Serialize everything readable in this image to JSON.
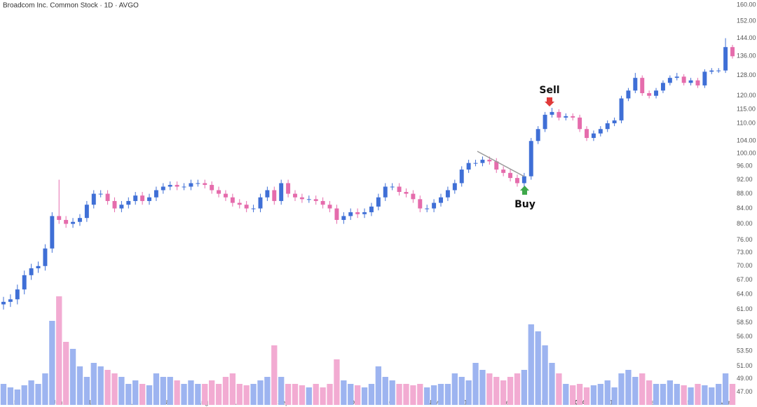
{
  "chart_data": {
    "type": "candlestick",
    "title": "Broadcom Inc. Common Stock · 1D · AVGO",
    "annotations": [
      "Sell",
      "Buy"
    ],
    "log_scale": true,
    "grid": false,
    "up_color": "#3f6fd6",
    "down_color": "#e56cac",
    "volume_up_color": "#9db4f0",
    "volume_down_color": "#f2abd2",
    "ylim": [
      45,
      160
    ],
    "yticks": [
      {
        "value": 160,
        "label": "160.00"
      },
      {
        "value": 152,
        "label": "152.00"
      },
      {
        "value": 144,
        "label": "144.00"
      },
      {
        "value": 136,
        "label": "136.00"
      },
      {
        "value": 128,
        "label": "128.00"
      },
      {
        "value": 120,
        "label": "120.00"
      },
      {
        "value": 115,
        "label": "115.00"
      },
      {
        "value": 110,
        "label": "110.00"
      },
      {
        "value": 104,
        "label": "104.00"
      },
      {
        "value": 100,
        "label": "100.00"
      },
      {
        "value": 96,
        "label": "96.00"
      },
      {
        "value": 92,
        "label": "92.00"
      },
      {
        "value": 88,
        "label": "88.00"
      },
      {
        "value": 84,
        "label": "84.00"
      },
      {
        "value": 80,
        "label": "80.00"
      },
      {
        "value": 76,
        "label": "76.00"
      },
      {
        "value": 73,
        "label": "73.00"
      },
      {
        "value": 70,
        "label": "70.00"
      },
      {
        "value": 67,
        "label": "67.00"
      },
      {
        "value": 64,
        "label": "64.00"
      },
      {
        "value": 61,
        "label": "61.00"
      },
      {
        "value": 58.5,
        "label": "58.50"
      },
      {
        "value": 56,
        "label": "56.00"
      },
      {
        "value": 53.5,
        "label": "53.50"
      },
      {
        "value": 51,
        "label": "51.00"
      },
      {
        "value": 49,
        "label": "49.00"
      },
      {
        "value": 47,
        "label": "47.00"
      }
    ],
    "xticks": [
      {
        "value": 1.5,
        "label": "15"
      },
      {
        "value": 7.8,
        "label": "Jun"
      },
      {
        "value": 12.7,
        "label": "15"
      },
      {
        "value": 18.4,
        "label": "Jul"
      },
      {
        "value": 23.4,
        "label": "18"
      },
      {
        "value": 28.7,
        "label": "Aug"
      },
      {
        "value": 33.6,
        "label": "15"
      },
      {
        "value": 40.3,
        "label": "Sep"
      },
      {
        "value": 50.6,
        "label": "Oct"
      },
      {
        "value": 55.5,
        "label": "16"
      },
      {
        "value": 61.8,
        "label": "Nov"
      },
      {
        "value": 66.8,
        "label": "15"
      },
      {
        "value": 72.5,
        "label": "Dec"
      },
      {
        "value": 77.5,
        "label": "15"
      },
      {
        "value": 82.8,
        "label": "2024"
      },
      {
        "value": 87.8,
        "label": "17"
      },
      {
        "value": 93.5,
        "label": "Feb"
      },
      {
        "value": 98.5,
        "label": "15"
      },
      {
        "value": 103.9,
        "label": "Mar"
      }
    ],
    "open": [
      62,
      62.5,
      63,
      65,
      68,
      69.5,
      70,
      74,
      82,
      81,
      80,
      80.5,
      81.5,
      85,
      88,
      88,
      86,
      84,
      85,
      86,
      87.5,
      86,
      87,
      89,
      90,
      90.5,
      90,
      90,
      91,
      91,
      90.5,
      89,
      88,
      87,
      85.5,
      85,
      84,
      84,
      87,
      89,
      86,
      91,
      88,
      87,
      86.5,
      86.5,
      86,
      85,
      84,
      81,
      82,
      83,
      82.5,
      83,
      84.5,
      87,
      90,
      90,
      88.5,
      88,
      86.5,
      84,
      84,
      85.5,
      87,
      89,
      91,
      95,
      97,
      97,
      98,
      97.5,
      95,
      94,
      92.5,
      91,
      93,
      104,
      108,
      113,
      114,
      112,
      112.5,
      112,
      108,
      105,
      106.5,
      108,
      110,
      111,
      119,
      122,
      127,
      121,
      120,
      122,
      125,
      127,
      127.5,
      125,
      126,
      124,
      129.5,
      130,
      130,
      140
    ],
    "high": [
      63.5,
      64,
      66,
      69,
      70.5,
      71,
      75,
      83,
      92,
      82,
      81.5,
      82.5,
      86,
      89,
      89,
      89,
      87,
      86,
      87,
      88.5,
      88.5,
      88,
      90,
      91,
      91.5,
      91.5,
      91,
      92,
      92,
      92,
      91.5,
      90,
      89,
      88,
      86.5,
      86,
      85,
      88,
      90,
      90,
      92,
      92,
      89,
      88,
      87.5,
      87.5,
      87,
      86,
      85,
      83,
      84,
      84,
      84,
      85.5,
      88,
      91,
      91,
      91,
      89.5,
      89,
      87.5,
      85,
      86.5,
      88,
      90,
      92,
      96,
      98,
      98,
      99,
      99,
      98.5,
      96,
      95,
      93.5,
      94,
      105,
      109,
      114,
      115.5,
      115,
      113.5,
      113.5,
      113,
      109,
      107.5,
      109,
      111,
      112,
      120,
      123,
      129,
      128,
      122,
      123,
      126,
      128,
      129,
      128.5,
      127,
      127,
      130.5,
      131,
      131,
      144,
      141
    ],
    "low": [
      61,
      61.5,
      62,
      64,
      67,
      68.5,
      69,
      73,
      80,
      79,
      79,
      79.5,
      80.5,
      84,
      87,
      85,
      83,
      83,
      84,
      85,
      85,
      85,
      86,
      88,
      89,
      89,
      89,
      89,
      90,
      89.5,
      88,
      87,
      86,
      84.5,
      84,
      83,
      83,
      83,
      86,
      85,
      85,
      87,
      86,
      85.5,
      85.5,
      85,
      84,
      83,
      80,
      80,
      81,
      81.5,
      81.5,
      82,
      83.5,
      86,
      89,
      87.5,
      87,
      85.5,
      83,
      83,
      83,
      84.5,
      86,
      88,
      90,
      94,
      96,
      96,
      96.5,
      94,
      93,
      91.5,
      90,
      90,
      92,
      103,
      107,
      112,
      111,
      111,
      111,
      107,
      104,
      104,
      105.5,
      107,
      109,
      110,
      118,
      121,
      120,
      119,
      119,
      121,
      124,
      126,
      124,
      124,
      123,
      123,
      128.5,
      129,
      129,
      135
    ],
    "close": [
      62.5,
      63,
      65,
      68,
      69.5,
      70,
      74,
      82,
      81,
      80,
      80.5,
      81.5,
      85,
      88,
      88,
      86,
      84,
      85,
      86,
      87.5,
      86,
      87,
      89,
      90,
      90.5,
      90,
      90,
      91,
      91,
      90.5,
      89,
      88,
      87,
      85.5,
      85,
      84,
      84,
      87,
      89,
      86,
      91,
      88,
      87,
      86.5,
      86.5,
      86,
      85,
      84,
      81,
      82,
      83,
      82.5,
      83,
      84.5,
      87,
      90,
      90,
      88.5,
      88,
      86.5,
      84,
      84,
      85.5,
      87,
      89,
      91,
      95,
      97,
      97,
      98,
      97.5,
      95,
      94,
      92.5,
      91,
      93,
      104,
      108,
      113,
      114,
      112,
      112.5,
      112,
      108,
      105,
      106.5,
      108,
      110,
      111,
      119,
      122,
      127,
      121,
      120,
      122,
      125,
      127,
      127.5,
      125,
      126,
      124,
      129.5,
      130,
      130,
      140,
      136
    ],
    "volume": [
      30,
      25,
      22,
      28,
      35,
      30,
      45,
      120,
      155,
      90,
      80,
      55,
      40,
      60,
      55,
      50,
      45,
      40,
      30,
      35,
      30,
      28,
      45,
      40,
      40,
      35,
      30,
      35,
      30,
      30,
      35,
      30,
      40,
      45,
      30,
      28,
      30,
      35,
      40,
      85,
      40,
      30,
      30,
      28,
      25,
      30,
      25,
      30,
      65,
      35,
      30,
      28,
      25,
      30,
      55,
      40,
      35,
      30,
      30,
      28,
      30,
      25,
      28,
      30,
      30,
      45,
      40,
      35,
      60,
      50,
      45,
      40,
      35,
      40,
      45,
      50,
      115,
      105,
      85,
      60,
      45,
      30,
      28,
      30,
      25,
      28,
      30,
      35,
      25,
      45,
      50,
      40,
      45,
      35,
      30,
      30,
      35,
      30,
      28,
      25,
      30,
      28,
      25,
      30,
      45,
      30
    ]
  }
}
